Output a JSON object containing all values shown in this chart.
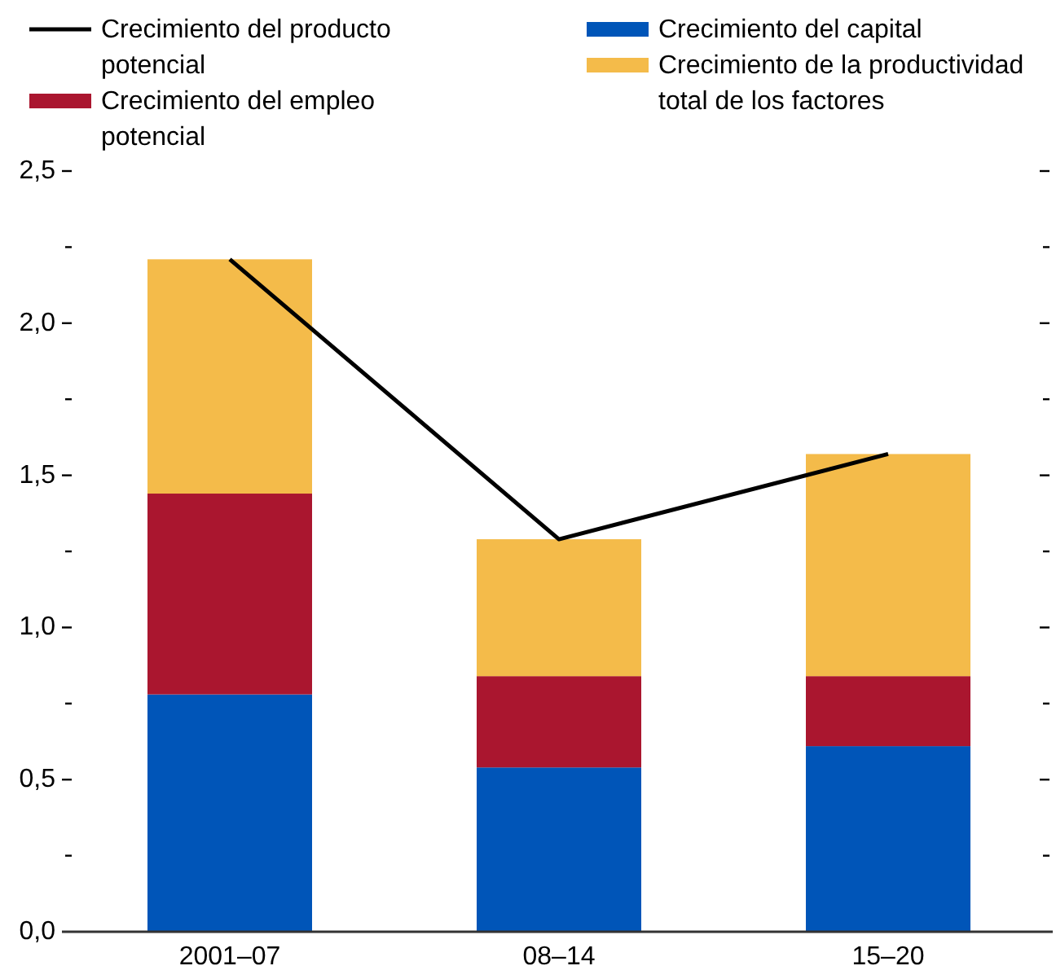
{
  "chart_data": {
    "type": "bar",
    "stacked": true,
    "categories": [
      "2001–07",
      "08–14",
      "15–20"
    ],
    "series": [
      {
        "name": "Crecimiento del producto potencial",
        "type": "line",
        "color": "#000000",
        "values": [
          2.21,
          1.29,
          1.57
        ]
      },
      {
        "name": "Crecimiento del capital",
        "color": "#0055b8",
        "values": [
          0.78,
          0.54,
          0.61
        ]
      },
      {
        "name": "Crecimiento del empleo potencial",
        "color": "#aa162f",
        "values": [
          0.66,
          0.3,
          0.23
        ]
      },
      {
        "name": "Crecimiento de la productividad total de los factores",
        "color": "#f4bb4a",
        "values": [
          0.77,
          0.45,
          0.73
        ]
      }
    ],
    "ylim": [
      0,
      2.5
    ],
    "yticks": [
      {
        "value": 0,
        "label": "0,0"
      },
      {
        "value": 0.25,
        "label": null
      },
      {
        "value": 0.5,
        "label": "0,5"
      },
      {
        "value": 0.75,
        "label": null
      },
      {
        "value": 1,
        "label": "1,0"
      },
      {
        "value": 1.25,
        "label": null
      },
      {
        "value": 1.5,
        "label": "1,5"
      },
      {
        "value": 1.75,
        "label": null
      },
      {
        "value": 2,
        "label": "2,0"
      },
      {
        "value": 2.25,
        "label": null
      },
      {
        "value": 2.5,
        "label": "2,5"
      }
    ],
    "legend": "top",
    "marker": "none"
  }
}
